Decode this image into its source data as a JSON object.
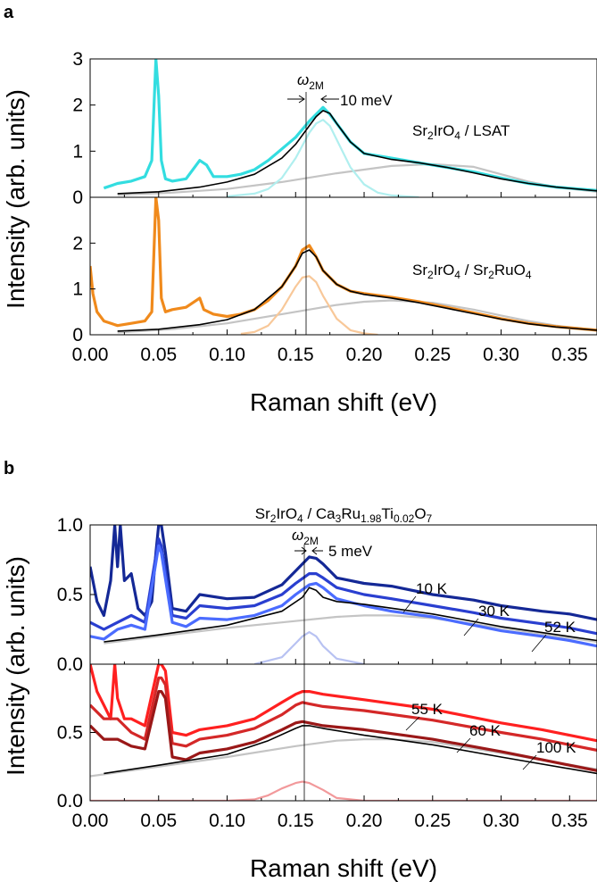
{
  "panel_a": {
    "letter": "a",
    "ylabel": "Intensity (arb. units)",
    "xlabel": "Raman shift (eV)",
    "omega_symbol": "ω",
    "omega_sub": "2M",
    "shift_label": "10 meV",
    "label_top": [
      "Sr",
      "2",
      "IrO",
      "4",
      " / LSAT"
    ],
    "label_bottom": [
      "Sr",
      "2",
      "IrO",
      "4",
      " / Sr",
      "2",
      "RuO",
      "4"
    ]
  },
  "panel_b": {
    "letter": "b",
    "title": [
      "Sr",
      "2",
      "IrO",
      "4",
      " / Ca",
      "3",
      "Ru",
      "1.98",
      "Ti",
      "0.02",
      "O",
      "7"
    ],
    "ylabel": "Intensity (arb. units)",
    "xlabel": "Raman shift (eV)",
    "omega_symbol": "ω",
    "omega_sub": "2M",
    "shift_label": "5 meV"
  },
  "chart_data": [
    {
      "type": "line",
      "panel": "a-top",
      "xlim": [
        0,
        0.37
      ],
      "ylim": [
        0,
        3
      ],
      "yticks": [
        0,
        1,
        2,
        3
      ],
      "grid": false,
      "series": [
        {
          "name": "",
          "role": "data",
          "color": "#33dde0",
          "x": [
            0.01,
            0.02,
            0.03,
            0.04,
            0.045,
            0.048,
            0.05,
            0.052,
            0.055,
            0.06,
            0.07,
            0.08,
            0.085,
            0.09,
            0.1,
            0.11,
            0.12,
            0.13,
            0.14,
            0.15,
            0.16,
            0.165,
            0.17,
            0.175,
            0.18,
            0.19,
            0.2,
            0.22,
            0.24,
            0.26,
            0.28,
            0.3,
            0.32,
            0.34,
            0.37
          ],
          "y": [
            0.2,
            0.3,
            0.35,
            0.45,
            0.8,
            3.0,
            2.2,
            0.8,
            0.4,
            0.35,
            0.4,
            0.8,
            0.7,
            0.45,
            0.45,
            0.5,
            0.6,
            0.8,
            1.05,
            1.3,
            1.65,
            1.8,
            1.95,
            1.8,
            1.6,
            1.2,
            0.95,
            0.85,
            0.75,
            0.65,
            0.55,
            0.42,
            0.3,
            0.22,
            0.15
          ]
        },
        {
          "name": "",
          "role": "fit-total",
          "color": "#000000",
          "x": [
            0.02,
            0.05,
            0.08,
            0.1,
            0.12,
            0.14,
            0.15,
            0.16,
            0.165,
            0.17,
            0.175,
            0.18,
            0.19,
            0.2,
            0.22,
            0.24,
            0.26,
            0.28,
            0.3,
            0.32,
            0.34,
            0.37
          ],
          "y": [
            0.08,
            0.12,
            0.22,
            0.33,
            0.5,
            0.85,
            1.15,
            1.55,
            1.75,
            1.88,
            1.82,
            1.6,
            1.2,
            0.95,
            0.82,
            0.75,
            0.65,
            0.53,
            0.4,
            0.3,
            0.22,
            0.14
          ]
        },
        {
          "name": "",
          "role": "fit-peak",
          "color": "#b0efef",
          "x": [
            0.1,
            0.12,
            0.13,
            0.14,
            0.15,
            0.16,
            0.165,
            0.17,
            0.175,
            0.18,
            0.19,
            0.2,
            0.21,
            0.22,
            0.24
          ],
          "y": [
            0.02,
            0.08,
            0.18,
            0.42,
            0.85,
            1.4,
            1.6,
            1.68,
            1.55,
            1.25,
            0.65,
            0.28,
            0.1,
            0.04,
            0.0
          ]
        },
        {
          "name": "",
          "role": "fit-background",
          "color": "#c4c4c4",
          "x": [
            0.02,
            0.06,
            0.1,
            0.14,
            0.18,
            0.22,
            0.25,
            0.28,
            0.3,
            0.32,
            0.34,
            0.37
          ],
          "y": [
            0.05,
            0.1,
            0.18,
            0.33,
            0.52,
            0.68,
            0.72,
            0.66,
            0.5,
            0.34,
            0.22,
            0.12
          ]
        }
      ]
    },
    {
      "type": "line",
      "panel": "a-bottom",
      "xlim": [
        0,
        0.37
      ],
      "ylim": [
        0,
        3
      ],
      "xticks": [
        0.0,
        0.05,
        0.1,
        0.15,
        0.2,
        0.25,
        0.3,
        0.35
      ],
      "yticks": [
        0,
        1,
        2
      ],
      "grid": false,
      "series": [
        {
          "name": "",
          "role": "data",
          "color": "#f08a1c",
          "x": [
            0.0,
            0.002,
            0.005,
            0.01,
            0.02,
            0.03,
            0.04,
            0.045,
            0.048,
            0.05,
            0.052,
            0.055,
            0.06,
            0.07,
            0.08,
            0.083,
            0.09,
            0.1,
            0.11,
            0.12,
            0.13,
            0.14,
            0.15,
            0.155,
            0.16,
            0.165,
            0.17,
            0.18,
            0.19,
            0.2,
            0.22,
            0.24,
            0.26,
            0.28,
            0.3,
            0.32,
            0.34,
            0.37
          ],
          "y": [
            1.5,
            0.9,
            0.5,
            0.3,
            0.2,
            0.25,
            0.3,
            0.5,
            3.0,
            2.5,
            0.8,
            0.5,
            0.55,
            0.6,
            0.8,
            0.55,
            0.45,
            0.4,
            0.45,
            0.55,
            0.75,
            1.05,
            1.5,
            1.85,
            1.95,
            1.7,
            1.4,
            1.1,
            0.95,
            0.9,
            0.82,
            0.72,
            0.6,
            0.48,
            0.35,
            0.25,
            0.18,
            0.1
          ]
        },
        {
          "name": "",
          "role": "fit-total",
          "color": "#000000",
          "x": [
            0.02,
            0.05,
            0.08,
            0.1,
            0.12,
            0.14,
            0.15,
            0.155,
            0.16,
            0.165,
            0.17,
            0.18,
            0.19,
            0.2,
            0.22,
            0.24,
            0.26,
            0.28,
            0.3,
            0.32,
            0.34,
            0.37
          ],
          "y": [
            0.08,
            0.12,
            0.22,
            0.33,
            0.55,
            1.05,
            1.5,
            1.78,
            1.85,
            1.7,
            1.4,
            1.1,
            0.95,
            0.88,
            0.8,
            0.7,
            0.58,
            0.46,
            0.34,
            0.24,
            0.17,
            0.1
          ]
        },
        {
          "name": "",
          "role": "fit-peak",
          "color": "#f8c899",
          "x": [
            0.11,
            0.12,
            0.13,
            0.14,
            0.15,
            0.155,
            0.16,
            0.165,
            0.17,
            0.18,
            0.19,
            0.2,
            0.21
          ],
          "y": [
            0.02,
            0.06,
            0.2,
            0.55,
            1.05,
            1.25,
            1.28,
            1.15,
            0.85,
            0.35,
            0.1,
            0.03,
            0.0
          ]
        },
        {
          "name": "",
          "role": "fit-background",
          "color": "#c4c4c4",
          "x": [
            0.02,
            0.06,
            0.1,
            0.14,
            0.18,
            0.2,
            0.22,
            0.25,
            0.28,
            0.3,
            0.32,
            0.34,
            0.37
          ],
          "y": [
            0.05,
            0.12,
            0.25,
            0.45,
            0.65,
            0.72,
            0.75,
            0.7,
            0.55,
            0.42,
            0.3,
            0.2,
            0.1
          ]
        }
      ]
    },
    {
      "type": "line",
      "panel": "b-top",
      "xlim": [
        0,
        0.37
      ],
      "ylim": [
        0,
        1.0
      ],
      "yticks": [
        0.0,
        0.5,
        1.0
      ],
      "grid": false,
      "series": [
        {
          "name": "10 K",
          "role": "data",
          "color": "#142896",
          "x": [
            0.0,
            0.005,
            0.01,
            0.015,
            0.018,
            0.02,
            0.022,
            0.025,
            0.03,
            0.035,
            0.04,
            0.045,
            0.048,
            0.05,
            0.052,
            0.055,
            0.06,
            0.07,
            0.08,
            0.1,
            0.12,
            0.14,
            0.15,
            0.16,
            0.165,
            0.17,
            0.18,
            0.2,
            0.22,
            0.25,
            0.28,
            0.3,
            0.33,
            0.35,
            0.37
          ],
          "y": [
            0.7,
            0.45,
            0.35,
            0.6,
            1.0,
            0.7,
            1.0,
            0.6,
            0.65,
            0.4,
            0.35,
            0.45,
            0.8,
            1.0,
            1.0,
            0.8,
            0.4,
            0.38,
            0.5,
            0.47,
            0.48,
            0.57,
            0.67,
            0.77,
            0.76,
            0.72,
            0.62,
            0.58,
            0.56,
            0.5,
            0.46,
            0.42,
            0.38,
            0.36,
            0.32
          ]
        },
        {
          "name": "30 K",
          "role": "data",
          "color": "#2a3fd0",
          "x": [
            0.0,
            0.01,
            0.02,
            0.03,
            0.04,
            0.05,
            0.052,
            0.06,
            0.07,
            0.08,
            0.1,
            0.12,
            0.14,
            0.15,
            0.16,
            0.165,
            0.17,
            0.18,
            0.2,
            0.22,
            0.25,
            0.28,
            0.3,
            0.33,
            0.35,
            0.37
          ],
          "y": [
            0.3,
            0.25,
            0.3,
            0.35,
            0.3,
            0.9,
            0.85,
            0.35,
            0.33,
            0.42,
            0.4,
            0.42,
            0.5,
            0.58,
            0.65,
            0.65,
            0.62,
            0.55,
            0.5,
            0.47,
            0.42,
            0.37,
            0.33,
            0.29,
            0.26,
            0.22
          ]
        },
        {
          "name": "52 K",
          "role": "data",
          "color": "#4b6cff",
          "x": [
            0.0,
            0.01,
            0.02,
            0.03,
            0.04,
            0.05,
            0.052,
            0.06,
            0.07,
            0.08,
            0.1,
            0.12,
            0.14,
            0.15,
            0.16,
            0.165,
            0.17,
            0.18,
            0.2,
            0.22,
            0.25,
            0.28,
            0.3,
            0.33,
            0.35,
            0.37
          ],
          "y": [
            0.2,
            0.18,
            0.25,
            0.28,
            0.25,
            0.85,
            0.8,
            0.3,
            0.27,
            0.33,
            0.32,
            0.35,
            0.42,
            0.5,
            0.57,
            0.58,
            0.55,
            0.47,
            0.42,
            0.38,
            0.34,
            0.28,
            0.24,
            0.2,
            0.17,
            0.13
          ]
        },
        {
          "name": "",
          "role": "fit-total",
          "color": "#000000",
          "x": [
            0.01,
            0.05,
            0.1,
            0.14,
            0.155,
            0.16,
            0.165,
            0.17,
            0.18,
            0.2,
            0.25,
            0.3,
            0.37
          ],
          "y": [
            0.16,
            0.21,
            0.28,
            0.38,
            0.48,
            0.55,
            0.53,
            0.48,
            0.45,
            0.43,
            0.36,
            0.27,
            0.17
          ]
        },
        {
          "name": "",
          "role": "fit-peak",
          "color": "#b8c2f2",
          "x": [
            0.12,
            0.14,
            0.15,
            0.155,
            0.16,
            0.165,
            0.17,
            0.18,
            0.2
          ],
          "y": [
            0.0,
            0.05,
            0.15,
            0.2,
            0.23,
            0.2,
            0.13,
            0.04,
            0.0
          ]
        },
        {
          "name": "",
          "role": "fit-background",
          "color": "#c4c4c4",
          "x": [
            0.01,
            0.05,
            0.1,
            0.14,
            0.18,
            0.2,
            0.22,
            0.25,
            0.3,
            0.37
          ],
          "y": [
            0.15,
            0.2,
            0.26,
            0.3,
            0.34,
            0.35,
            0.35,
            0.33,
            0.26,
            0.16
          ]
        }
      ]
    },
    {
      "type": "line",
      "panel": "b-bottom",
      "xlim": [
        0,
        0.37
      ],
      "ylim": [
        0,
        1.0
      ],
      "xticks": [
        0.0,
        0.05,
        0.1,
        0.15,
        0.2,
        0.25,
        0.3,
        0.35
      ],
      "yticks": [
        0.0,
        0.5
      ],
      "grid": false,
      "series": [
        {
          "name": "55 K",
          "role": "data",
          "color": "#ff2020",
          "x": [
            0.0,
            0.005,
            0.01,
            0.015,
            0.018,
            0.02,
            0.025,
            0.03,
            0.04,
            0.05,
            0.052,
            0.055,
            0.06,
            0.07,
            0.08,
            0.1,
            0.12,
            0.14,
            0.15,
            0.155,
            0.16,
            0.17,
            0.2,
            0.25,
            0.3,
            0.33,
            0.35,
            0.37
          ],
          "y": [
            1.0,
            0.8,
            0.7,
            0.6,
            1.0,
            0.75,
            0.6,
            0.6,
            0.55,
            1.0,
            1.0,
            0.95,
            0.5,
            0.48,
            0.52,
            0.55,
            0.6,
            0.72,
            0.78,
            0.8,
            0.8,
            0.78,
            0.74,
            0.67,
            0.57,
            0.52,
            0.48,
            0.44
          ]
        },
        {
          "name": "60 K",
          "role": "data",
          "color": "#d42828",
          "x": [
            0.0,
            0.01,
            0.02,
            0.03,
            0.04,
            0.05,
            0.052,
            0.055,
            0.06,
            0.07,
            0.08,
            0.1,
            0.12,
            0.14,
            0.15,
            0.155,
            0.16,
            0.17,
            0.2,
            0.25,
            0.3,
            0.33,
            0.35,
            0.37
          ],
          "y": [
            0.7,
            0.6,
            0.6,
            0.5,
            0.45,
            0.9,
            0.9,
            0.85,
            0.42,
            0.4,
            0.45,
            0.48,
            0.53,
            0.63,
            0.7,
            0.72,
            0.71,
            0.69,
            0.66,
            0.59,
            0.5,
            0.45,
            0.41,
            0.37
          ]
        },
        {
          "name": "100 K",
          "role": "data",
          "color": "#9a1818",
          "x": [
            0.0,
            0.01,
            0.02,
            0.03,
            0.04,
            0.05,
            0.052,
            0.055,
            0.06,
            0.07,
            0.08,
            0.1,
            0.12,
            0.14,
            0.15,
            0.155,
            0.16,
            0.17,
            0.2,
            0.25,
            0.3,
            0.33,
            0.35,
            0.37
          ],
          "y": [
            0.55,
            0.45,
            0.45,
            0.4,
            0.38,
            0.8,
            0.8,
            0.75,
            0.32,
            0.3,
            0.35,
            0.38,
            0.43,
            0.52,
            0.57,
            0.58,
            0.57,
            0.55,
            0.52,
            0.45,
            0.36,
            0.3,
            0.26,
            0.22
          ]
        },
        {
          "name": "",
          "role": "fit-total",
          "color": "#000000",
          "x": [
            0.01,
            0.05,
            0.1,
            0.13,
            0.15,
            0.155,
            0.16,
            0.17,
            0.2,
            0.25,
            0.3,
            0.37
          ],
          "y": [
            0.2,
            0.26,
            0.34,
            0.44,
            0.53,
            0.55,
            0.55,
            0.53,
            0.48,
            0.41,
            0.32,
            0.2
          ]
        },
        {
          "name": "",
          "role": "fit-peak",
          "color": "#f2999b",
          "x": [
            0.0,
            0.1,
            0.12,
            0.13,
            0.14,
            0.15,
            0.155,
            0.16,
            0.17,
            0.18,
            0.2,
            0.25,
            0.3,
            0.37
          ],
          "y": [
            0.0,
            0.0,
            0.01,
            0.04,
            0.09,
            0.13,
            0.14,
            0.13,
            0.08,
            0.02,
            0.0,
            0.0,
            0.0,
            0.0
          ]
        },
        {
          "name": "",
          "role": "fit-background",
          "color": "#c4c4c4",
          "x": [
            0.0,
            0.05,
            0.1,
            0.15,
            0.18,
            0.2,
            0.22,
            0.25,
            0.3,
            0.37
          ],
          "y": [
            0.18,
            0.25,
            0.32,
            0.4,
            0.44,
            0.45,
            0.45,
            0.43,
            0.35,
            0.23
          ]
        }
      ]
    }
  ]
}
